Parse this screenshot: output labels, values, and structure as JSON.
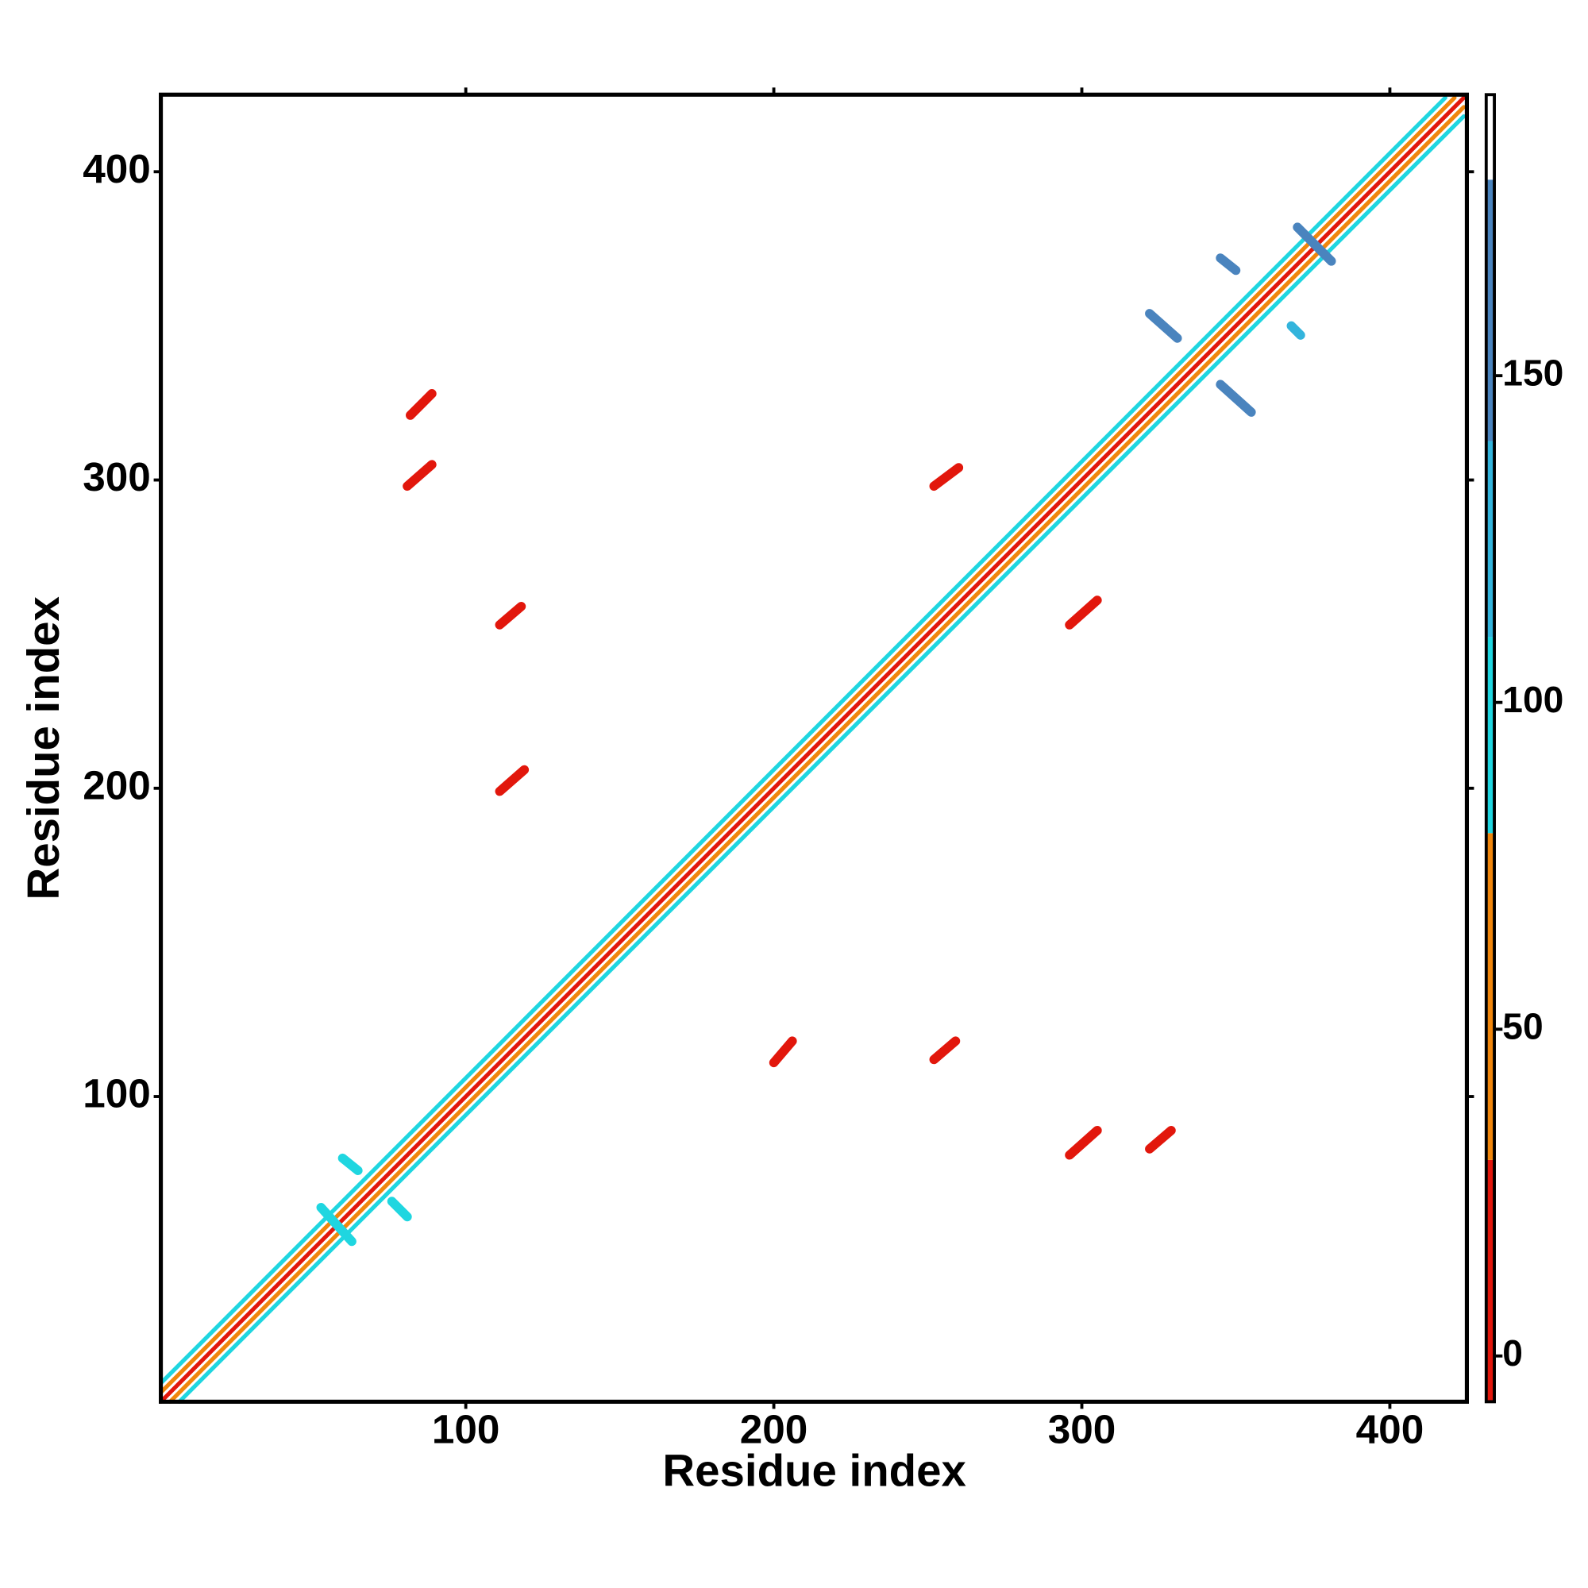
{
  "chart_data": {
    "type": "contact_map",
    "x_label": "Residue index",
    "y_label": "Residue index",
    "xlim": [
      1,
      425
    ],
    "ylim": [
      1,
      425
    ],
    "xticks": [
      100,
      200,
      300,
      400
    ],
    "yticks": [
      100,
      200,
      300,
      400
    ],
    "colorbar": {
      "lim": [
        -7,
        193
      ],
      "ticks": [
        0,
        50,
        100,
        150
      ],
      "bands": [
        {
          "from": -7,
          "to": 30,
          "color": "#e2170c"
        },
        {
          "from": 30,
          "to": 80,
          "color": "#f0860c"
        },
        {
          "from": 80,
          "to": 110,
          "color": "#1fd6e0"
        },
        {
          "from": 110,
          "to": 140,
          "color": "#33b4dc"
        },
        {
          "from": 140,
          "to": 180,
          "color": "#4a84be"
        },
        {
          "from": 180,
          "to": 193,
          "color": "#ffffff"
        }
      ]
    },
    "contacts": [
      {
        "x": [
          1,
          424
        ],
        "y": [
          1,
          424
        ],
        "value": 0
      },
      {
        "x": [
          1,
          421
        ],
        "y": [
          4,
          424
        ],
        "value": 60
      },
      {
        "x": [
          4,
          424
        ],
        "y": [
          1,
          421
        ],
        "value": 60
      },
      {
        "x": [
          1,
          418
        ],
        "y": [
          7,
          424
        ],
        "value": 95
      },
      {
        "x": [
          7,
          424
        ],
        "y": [
          1,
          418
        ],
        "value": 95
      },
      {
        "x": [
          82,
          89
        ],
        "y": [
          321,
          328
        ],
        "value": 10
      },
      {
        "x": [
          81,
          89
        ],
        "y": [
          298,
          305
        ],
        "value": 10
      },
      {
        "x": [
          111,
          118
        ],
        "y": [
          253,
          259
        ],
        "value": 10
      },
      {
        "x": [
          111,
          119
        ],
        "y": [
          199,
          206
        ],
        "value": 10
      },
      {
        "x": [
          200,
          206
        ],
        "y": [
          111,
          118
        ],
        "value": 10
      },
      {
        "x": [
          252,
          259
        ],
        "y": [
          112,
          118
        ],
        "value": 10
      },
      {
        "x": [
          252,
          260
        ],
        "y": [
          298,
          304
        ],
        "value": 10
      },
      {
        "x": [
          296,
          305
        ],
        "y": [
          253,
          261
        ],
        "value": 10
      },
      {
        "x": [
          296,
          305
        ],
        "y": [
          81,
          89
        ],
        "value": 10
      },
      {
        "x": [
          322,
          329
        ],
        "y": [
          83,
          89
        ],
        "value": 10
      },
      {
        "x": [
          322,
          331
        ],
        "y": [
          354,
          346
        ],
        "value": 150
      },
      {
        "x": [
          345,
          355
        ],
        "y": [
          331,
          322
        ],
        "value": 150
      },
      {
        "x": [
          370,
          381
        ],
        "y": [
          382,
          371
        ],
        "value": 155
      },
      {
        "x": [
          345,
          350
        ],
        "y": [
          372,
          368
        ],
        "value": 150
      },
      {
        "x": [
          368,
          371
        ],
        "y": [
          350,
          347
        ],
        "value": 130
      },
      {
        "x": [
          53,
          63
        ],
        "y": [
          64,
          53
        ],
        "value": 100
      },
      {
        "x": [
          60,
          65
        ],
        "y": [
          80,
          76
        ],
        "value": 95
      },
      {
        "x": [
          76,
          81
        ],
        "y": [
          66,
          61
        ],
        "value": 95
      }
    ]
  }
}
